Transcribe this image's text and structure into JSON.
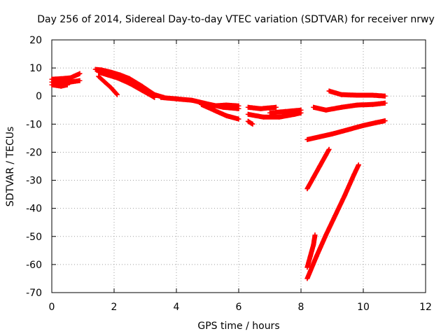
{
  "chart_data": {
    "type": "scatter",
    "title": "Day 256 of 2014, Sidereal Day-to-day VTEC variation (SDTVAR) for receiver nrwy",
    "xlabel": "GPS time / hours",
    "ylabel": "SDTVAR / TECUs",
    "xlim": [
      0,
      12
    ],
    "ylim": [
      -70,
      20
    ],
    "x_ticks": [
      0,
      2,
      4,
      6,
      8,
      10,
      12
    ],
    "y_ticks": [
      20,
      10,
      0,
      -10,
      -20,
      -30,
      -40,
      -50,
      -60,
      -70
    ],
    "grid": true,
    "marker": "plus",
    "color": "#ff0000",
    "tracks": [
      {
        "points": [
          [
            0.0,
            6.0
          ],
          [
            0.3,
            6.2
          ],
          [
            0.6,
            6.5
          ],
          [
            0.9,
            8.0
          ]
        ]
      },
      {
        "points": [
          [
            0.0,
            5.0
          ],
          [
            0.3,
            4.5
          ],
          [
            0.6,
            5.0
          ],
          [
            0.9,
            5.5
          ]
        ]
      },
      {
        "points": [
          [
            0.0,
            4.0
          ],
          [
            0.3,
            3.5
          ],
          [
            0.5,
            4.0
          ]
        ]
      },
      {
        "points": [
          [
            1.4,
            9.5
          ],
          [
            1.6,
            9.3
          ],
          [
            1.9,
            8.5
          ],
          [
            2.2,
            7.5
          ],
          [
            2.5,
            6.2
          ],
          [
            2.9,
            3.5
          ],
          [
            3.3,
            0.5
          ],
          [
            3.6,
            -0.5
          ]
        ]
      },
      {
        "points": [
          [
            1.5,
            8.5
          ],
          [
            1.8,
            7.5
          ],
          [
            2.1,
            6.5
          ],
          [
            2.5,
            4.5
          ],
          [
            2.9,
            2.0
          ],
          [
            3.3,
            -0.5
          ]
        ]
      },
      {
        "points": [
          [
            1.5,
            7.0
          ],
          [
            1.7,
            5.0
          ],
          [
            1.9,
            3.0
          ],
          [
            2.1,
            0.5
          ]
        ]
      },
      {
        "points": [
          [
            3.5,
            -0.5
          ],
          [
            4.0,
            -1.0
          ],
          [
            4.5,
            -1.5
          ],
          [
            5.0,
            -2.8
          ],
          [
            5.5,
            -4.0
          ],
          [
            6.0,
            -4.5
          ]
        ]
      },
      {
        "points": [
          [
            4.8,
            -3.0
          ],
          [
            5.2,
            -5.0
          ],
          [
            5.6,
            -7.0
          ],
          [
            6.0,
            -8.2
          ]
        ]
      },
      {
        "points": [
          [
            5.2,
            -3.5
          ],
          [
            5.6,
            -3.2
          ],
          [
            6.0,
            -3.5
          ]
        ]
      },
      {
        "points": [
          [
            6.3,
            -4.0
          ],
          [
            6.7,
            -4.5
          ],
          [
            7.2,
            -4.0
          ]
        ]
      },
      {
        "points": [
          [
            6.3,
            -6.5
          ],
          [
            6.8,
            -7.5
          ],
          [
            7.3,
            -7.5
          ],
          [
            7.8,
            -6.5
          ],
          [
            8.0,
            -6.0
          ]
        ]
      },
      {
        "points": [
          [
            6.3,
            -9.0
          ],
          [
            6.45,
            -10.0
          ]
        ]
      },
      {
        "points": [
          [
            7.0,
            -6.0
          ],
          [
            7.5,
            -5.5
          ],
          [
            8.0,
            -5.0
          ]
        ]
      },
      {
        "points": [
          [
            8.9,
            1.8
          ],
          [
            9.3,
            0.5
          ],
          [
            9.8,
            0.3
          ],
          [
            10.3,
            0.3
          ],
          [
            10.7,
            0.0
          ]
        ]
      },
      {
        "points": [
          [
            8.4,
            -4.0
          ],
          [
            8.8,
            -5.0
          ],
          [
            9.3,
            -4.0
          ],
          [
            9.8,
            -3.2
          ],
          [
            10.3,
            -3.0
          ],
          [
            10.7,
            -2.5
          ]
        ]
      },
      {
        "points": [
          [
            8.2,
            -15.5
          ],
          [
            8.6,
            -14.5
          ],
          [
            9.0,
            -13.5
          ],
          [
            9.5,
            -12.0
          ],
          [
            10.0,
            -10.5
          ],
          [
            10.4,
            -9.5
          ],
          [
            10.7,
            -8.8
          ]
        ]
      },
      {
        "points": [
          [
            8.2,
            -33.0
          ],
          [
            8.4,
            -29.0
          ],
          [
            8.6,
            -25.0
          ],
          [
            8.8,
            -21.0
          ],
          [
            8.9,
            -19.0
          ]
        ]
      },
      {
        "points": [
          [
            8.2,
            -65.0
          ],
          [
            8.5,
            -57.0
          ],
          [
            8.8,
            -49.5
          ],
          [
            9.1,
            -42.5
          ],
          [
            9.4,
            -35.5
          ],
          [
            9.7,
            -28.0
          ],
          [
            9.85,
            -24.5
          ]
        ]
      },
      {
        "points": [
          [
            8.2,
            -61.0
          ],
          [
            8.3,
            -57.0
          ],
          [
            8.4,
            -53.0
          ],
          [
            8.45,
            -49.5
          ]
        ]
      }
    ]
  }
}
